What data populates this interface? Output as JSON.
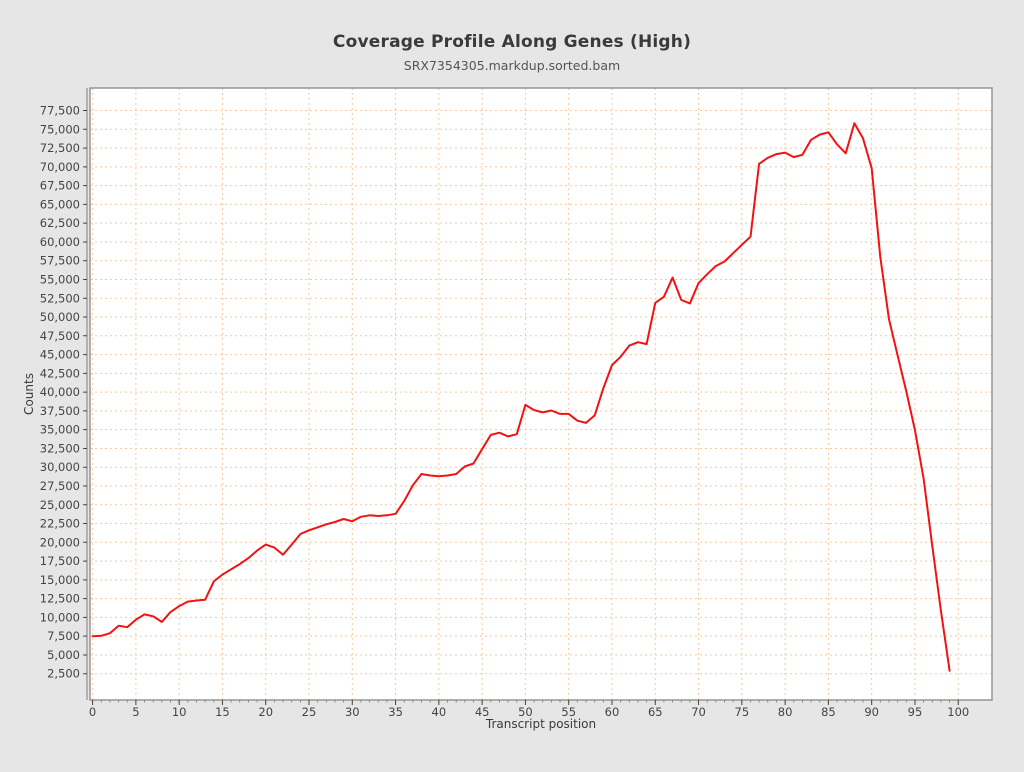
{
  "chart": {
    "title": "Coverage Profile Along Genes (High)",
    "subtitle": "SRX7354305.markdup.sorted.bam"
  },
  "colors": {
    "background": "#e6e6e6",
    "plot_background": "#ffffff",
    "grid": "#f5c9a2",
    "frame": "#8f8f8f",
    "tick": "#555555",
    "text": "#3a3a3a",
    "line": "#f21212"
  },
  "chart_data": {
    "type": "line",
    "title": "Coverage Profile Along Genes (High)",
    "subtitle": "SRX7354305.markdup.sorted.bam",
    "xlabel": "Transcript position",
    "ylabel": "Counts",
    "grid": true,
    "legend": "none",
    "xlim": [
      -0.3,
      103.9
    ],
    "ylim": [
      -1000,
      80500
    ],
    "x_ticks": [
      0,
      5,
      10,
      15,
      20,
      25,
      30,
      35,
      40,
      45,
      50,
      55,
      60,
      65,
      70,
      75,
      80,
      85,
      90,
      95,
      100
    ],
    "y_ticks": [
      2500,
      5000,
      7500,
      10000,
      12500,
      15000,
      17500,
      20000,
      22500,
      25000,
      27500,
      30000,
      32500,
      35000,
      37500,
      40000,
      42500,
      45000,
      47500,
      50000,
      52500,
      55000,
      57500,
      60000,
      62500,
      65000,
      67500,
      70000,
      72500,
      75000,
      77500
    ],
    "x_start": 0,
    "x_step": 1,
    "values": [
      7500,
      7550,
      7900,
      8900,
      8700,
      9700,
      10400,
      10150,
      9400,
      10700,
      11500,
      12100,
      12250,
      12350,
      14800,
      15700,
      16400,
      17100,
      17900,
      18900,
      19700,
      19300,
      18350,
      19700,
      21100,
      21600,
      22000,
      22400,
      22700,
      23100,
      22800,
      23400,
      23600,
      23500,
      23600,
      23800,
      25500,
      27600,
      29100,
      28900,
      28800,
      28900,
      29100,
      30100,
      30500,
      32400,
      34300,
      34600,
      34100,
      34400,
      38300,
      37600,
      37300,
      37550,
      37100,
      37100,
      36200,
      35900,
      36900,
      40500,
      43600,
      44700,
      46200,
      46650,
      46400,
      51900,
      52700,
      55250,
      52300,
      51800,
      54500,
      55700,
      56800,
      57400,
      58500,
      59600,
      60700,
      70400,
      71200,
      71700,
      71900,
      71300,
      71600,
      73600,
      74300,
      74600,
      73000,
      71800,
      75800,
      73800,
      69800,
      58000,
      49700,
      44900,
      40100,
      34900,
      28500,
      19500,
      10900,
      2900
    ]
  }
}
